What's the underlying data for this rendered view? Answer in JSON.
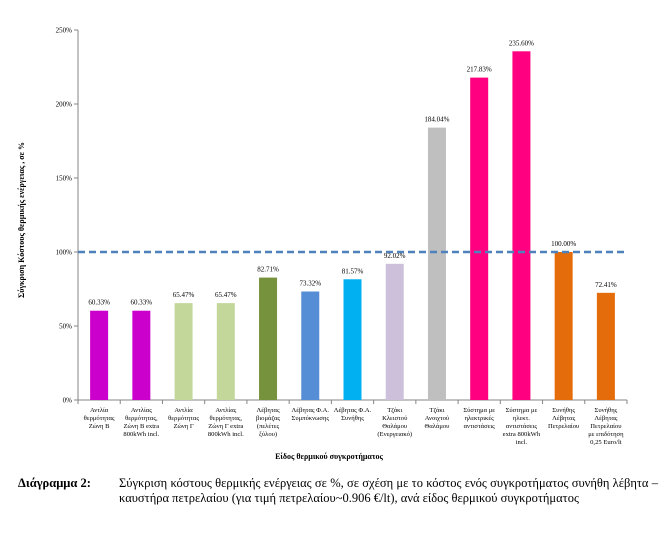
{
  "chart_data": {
    "type": "bar",
    "title": "",
    "xlabel": "Είδος θερμικού συγκροτήματος",
    "ylabel": "Σύγκριση Κόστους θερμικής ενέργειας , σε  %",
    "ylim": [
      0,
      250
    ],
    "yticks": [
      "0%",
      "50%",
      "100%",
      "150%",
      "200%",
      "250%"
    ],
    "yticks_values": [
      0,
      50,
      100,
      150,
      200,
      250
    ],
    "reference_line": 100,
    "grid": false,
    "legend": "none",
    "categories": [
      [
        "Αντλία",
        "θερμότητας",
        "Ζώνη Β"
      ],
      [
        "Αντλίας",
        "θερμότητας,",
        "Ζώνη Β extra",
        "800kWh incl."
      ],
      [
        "Αντλία",
        "θερμότητας",
        "Ζώνη Γ"
      ],
      [
        "Αντλίας",
        "θερμότητας,",
        "Ζώνη Γ extra",
        "800kWh incl."
      ],
      [
        "Λέβητας",
        "βιομάζας",
        "(πελέτες",
        "ξύλου)"
      ],
      [
        "Λέβητας Φ.Α.",
        "Συμπύκνωσης"
      ],
      [
        "Λέβητας Φ.Α.",
        "Συνήθης"
      ],
      [
        "Τζάκι",
        "Κλειστού",
        "Θαλάμου",
        "(Ενεργειακό)"
      ],
      [
        "Τζάκι",
        "Ανοιχτού",
        "Θαλάμου"
      ],
      [
        "Σύστημα με",
        "ηλεκτρικές",
        "αντιστάσεις"
      ],
      [
        "Σύστημα με",
        "ηλεκτ.",
        "αντιστάσεις",
        "extra 800kWh",
        "incl."
      ],
      [
        "Συνήθης",
        "Λέβητας",
        "Πετρελαίου"
      ],
      [
        "Συνήθης",
        "Λέβητας",
        "Πετρελαίου",
        "με επιδότηση",
        "0,25 Euro/lt"
      ]
    ],
    "values": [
      60.33,
      60.33,
      65.47,
      65.47,
      82.71,
      73.32,
      81.57,
      92.02,
      184.04,
      217.83,
      235.6,
      100.0,
      72.41
    ],
    "value_labels": [
      "60.33%",
      "60.33%",
      "65.47%",
      "65.47%",
      "82.71%",
      "73.32%",
      "81.57%",
      "92.02%",
      "184.04%",
      "217.83%",
      "235.60%",
      "100.00%",
      "72.41%"
    ],
    "colors": [
      "#cc00cc",
      "#cc00cc",
      "#c4d79b",
      "#c4d79b",
      "#76923c",
      "#558ed5",
      "#00b0f0",
      "#ccc0da",
      "#bfbfbf",
      "#ff0080",
      "#ff0080",
      "#e46c0a",
      "#e46c0a"
    ],
    "reference_line_color": "#4f81bd"
  },
  "caption": {
    "label": "Διάγραμμα 2:",
    "text": "Σύγκριση κόστους θερμικής ενέργειας σε %, σε σχέση με το κόστος ενός συγκροτήματος συνήθη λέβητα – καυστήρα πετρελαίου (για τιμή πετρελαίου~0.906 €/lt), ανά είδος θερμικού συγκροτήματος"
  }
}
